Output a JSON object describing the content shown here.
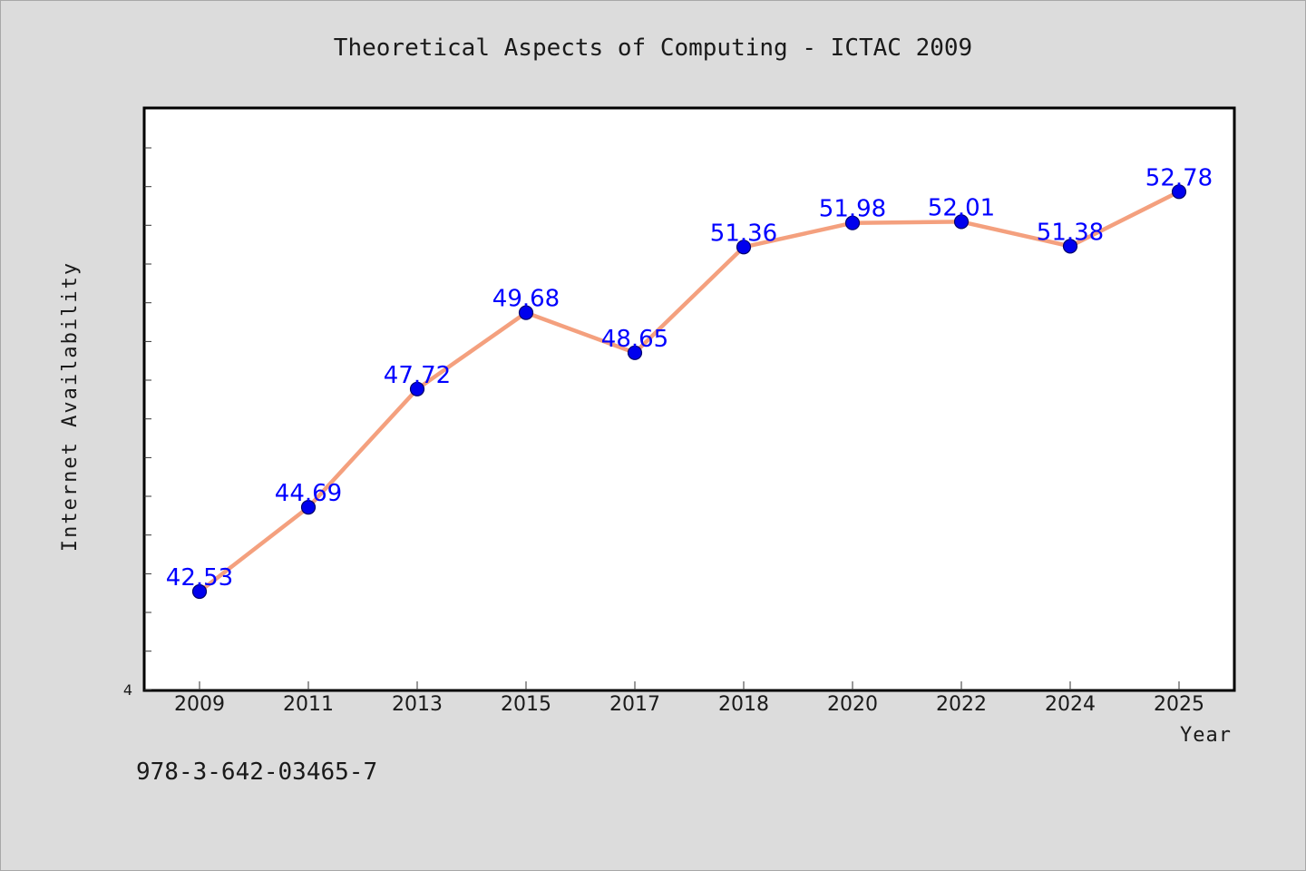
{
  "chart_data": {
    "type": "line",
    "title": "Theoretical Aspects of Computing - ICTAC 2009",
    "xlabel": "Year",
    "ylabel": "Internet Availability",
    "categories": [
      "2009",
      "2011",
      "2013",
      "2015",
      "2017",
      "2018",
      "2020",
      "2022",
      "2024",
      "2025"
    ],
    "series": [
      {
        "values": [
          42.53,
          44.69,
          47.72,
          49.68,
          48.65,
          51.36,
          51.98,
          52.01,
          51.38,
          52.78
        ],
        "data_labels": [
          "42.53",
          "44.69",
          "47.72",
          "49.68",
          "48.65",
          "51.36",
          "51.98",
          "52.01",
          "51.38",
          "52.78"
        ],
        "line_color": "#f4a07e",
        "marker_color": "#0000ee",
        "label_color": "#0000ff"
      }
    ],
    "ylim": [
      40,
      55
    ],
    "y_tick_labels": [
      "4"
    ],
    "grid": false,
    "legend": "none"
  },
  "footer": {
    "isbn": "978-3-642-03465-7"
  },
  "colors": {
    "background": "#dcdcdc",
    "plot_background": "#ffffff",
    "axis": "#000000"
  }
}
